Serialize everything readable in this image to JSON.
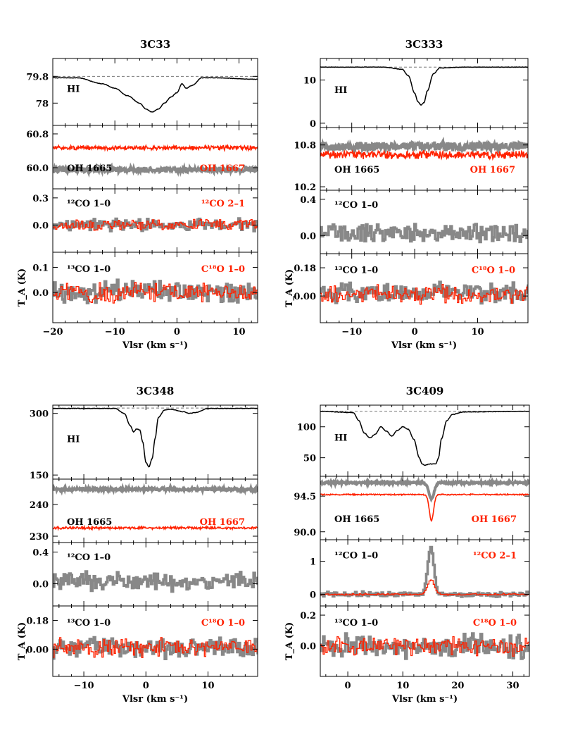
{
  "chart_data": [
    {
      "title": "3C33",
      "type": "line",
      "xlabel": "V_lsr (km s⁻¹)",
      "ylabel": "T_A (K)",
      "xlim": [
        -20,
        13
      ],
      "xticks": [
        -20,
        -10,
        0,
        10
      ],
      "panels": [
        {
          "id": "hi",
          "ylim": [
            76.5,
            81.0
          ],
          "yticks": [
            "78",
            "79.8"
          ],
          "baseline": 79.8,
          "labels": [
            {
              "text": "HI",
              "color": "#000000"
            }
          ],
          "series": [
            {
              "color": "#000000",
              "style": "smooth",
              "x": [
                -20,
                -16,
                -12,
                -10,
                -8,
                -6,
                -5,
                -4,
                -3,
                -2,
                -1,
                0,
                0.8,
                1.5,
                2.5,
                4,
                6,
                13
              ],
              "y": [
                79.7,
                79.7,
                79.3,
                79.0,
                78.5,
                78.0,
                77.6,
                77.4,
                77.6,
                78.0,
                78.4,
                78.7,
                79.3,
                79.0,
                79.2,
                79.7,
                79.7,
                79.6
              ]
            }
          ]
        },
        {
          "id": "oh",
          "ylim": [
            59.5,
            61.0
          ],
          "yticks": [
            "60.0",
            "60.8"
          ],
          "labels": [
            {
              "text": "OH 1665",
              "color": "#000000"
            },
            {
              "text": "OH 1667",
              "color": "#ff2200"
            }
          ],
          "series": [
            {
              "color": "#888888",
              "style": "noise",
              "level": 59.95,
              "noise": 0.05
            },
            {
              "color": "#ff2200",
              "style": "noise",
              "level": 60.47,
              "noise": 0.04
            }
          ]
        },
        {
          "id": "co12",
          "ylim": [
            -0.3,
            0.4
          ],
          "yticks": [
            "0.0",
            "0.3"
          ],
          "labels": [
            {
              "text": "¹²CO 1–0",
              "color": "#000000"
            },
            {
              "text": "¹²CO 2–1",
              "color": "#ff2200"
            }
          ],
          "series": [
            {
              "color": "#888888",
              "style": "step",
              "level": 0.0,
              "noise": 0.05
            },
            {
              "color": "#ff2200",
              "style": "step",
              "level": 0.0,
              "noise": 0.045
            }
          ]
        },
        {
          "id": "co13",
          "ylim": [
            -0.12,
            0.16
          ],
          "yticks": [
            "0.0",
            "0.1"
          ],
          "labels": [
            {
              "text": "¹³CO 1–0",
              "color": "#000000"
            },
            {
              "text": "C¹⁸O 1–0",
              "color": "#ff2200"
            }
          ],
          "series": [
            {
              "color": "#888888",
              "style": "step",
              "level": 0.0,
              "noise": 0.035
            },
            {
              "color": "#ff2200",
              "style": "step",
              "level": 0.0,
              "noise": 0.03
            }
          ]
        }
      ]
    },
    {
      "title": "3C333",
      "type": "line",
      "xlabel": "V_lsr (km s⁻¹)",
      "ylabel": "T_A (K)",
      "xlim": [
        -15,
        18
      ],
      "xticks": [
        -10,
        0,
        10
      ],
      "panels": [
        {
          "id": "hi",
          "ylim": [
            -1,
            15
          ],
          "yticks": [
            "0",
            "10"
          ],
          "baseline": 13.0,
          "labels": [
            {
              "text": "HI",
              "color": "#000000"
            }
          ],
          "series": [
            {
              "color": "#000000",
              "style": "smooth",
              "x": [
                -15,
                -5,
                -2,
                -1,
                0,
                0.5,
                1,
                1.5,
                2,
                3,
                4,
                8,
                18
              ],
              "y": [
                13.0,
                13.0,
                12.5,
                11.0,
                7.0,
                5.0,
                4.2,
                4.8,
                7.5,
                11.5,
                12.8,
                13.0,
                13.0
              ]
            }
          ]
        },
        {
          "id": "oh",
          "ylim": [
            10.15,
            11.05
          ],
          "yticks": [
            "10.2",
            "10.8"
          ],
          "labels": [
            {
              "text": "OH 1665",
              "color": "#000000"
            },
            {
              "text": "OH 1667",
              "color": "#ff2200"
            }
          ],
          "series": [
            {
              "color": "#888888",
              "style": "noise",
              "level": 10.78,
              "noise": 0.05
            },
            {
              "color": "#ff2200",
              "style": "noise",
              "level": 10.66,
              "noise": 0.045
            }
          ]
        },
        {
          "id": "co12",
          "ylim": [
            -0.2,
            0.5
          ],
          "yticks": [
            "0.0",
            "0.4"
          ],
          "labels": [
            {
              "text": "¹²CO 1–0",
              "color": "#000000"
            }
          ],
          "series": [
            {
              "color": "#888888",
              "style": "step",
              "level": 0.03,
              "noise": 0.08
            }
          ]
        },
        {
          "id": "co13",
          "ylim": [
            -0.17,
            0.27
          ],
          "yticks": [
            "0.00",
            "0.18"
          ],
          "labels": [
            {
              "text": "¹³CO 1–0",
              "color": "#000000"
            },
            {
              "text": "C¹⁸O 1–0",
              "color": "#ff2200"
            }
          ],
          "series": [
            {
              "color": "#888888",
              "style": "step",
              "level": 0.02,
              "noise": 0.05
            },
            {
              "color": "#ff2200",
              "style": "step",
              "level": 0.01,
              "noise": 0.045
            }
          ]
        }
      ]
    },
    {
      "title": "3C348",
      "type": "line",
      "xlabel": "V_lsr (km s⁻¹)",
      "ylabel": "T_A (K)",
      "xlim": [
        -15,
        18
      ],
      "xticks": [
        -10,
        0,
        10
      ],
      "panels": [
        {
          "id": "hi",
          "ylim": [
            140,
            320
          ],
          "yticks": [
            "150",
            "300"
          ],
          "baseline": 313,
          "labels": [
            {
              "text": "HI",
              "color": "#000000"
            }
          ],
          "series": [
            {
              "color": "#000000",
              "style": "smooth",
              "x": [
                -15,
                -5,
                -3.5,
                -2.5,
                -2,
                -1.5,
                -1,
                -0.5,
                0,
                0.5,
                1,
                1.5,
                2,
                3,
                4,
                6,
                7,
                8,
                10,
                18
              ],
              "y": [
                312,
                312,
                300,
                270,
                255,
                262,
                260,
                230,
                180,
                170,
                190,
                240,
                290,
                308,
                310,
                304,
                300,
                302,
                312,
                312
              ]
            }
          ]
        },
        {
          "id": "oh",
          "ylim": [
            228,
            248
          ],
          "yticks": [
            "230",
            "240"
          ],
          "labels": [
            {
              "text": "OH 1665",
              "color": "#000000"
            },
            {
              "text": "OH 1667",
              "color": "#ff2200"
            }
          ],
          "series": [
            {
              "color": "#888888",
              "style": "noise",
              "level": 244.8,
              "noise": 0.35
            },
            {
              "color": "#ff2200",
              "style": "noise",
              "level": 232.6,
              "noise": 0.3
            }
          ]
        },
        {
          "id": "co12",
          "ylim": [
            -0.28,
            0.52
          ],
          "yticks": [
            "0.0",
            "0.4"
          ],
          "labels": [
            {
              "text": "¹²CO 1–0",
              "color": "#000000"
            }
          ],
          "series": [
            {
              "color": "#888888",
              "style": "step",
              "level": 0.03,
              "noise": 0.09
            }
          ]
        },
        {
          "id": "co13",
          "ylim": [
            -0.17,
            0.27
          ],
          "yticks": [
            "0.00",
            "0.18"
          ],
          "labels": [
            {
              "text": "¹³CO 1–0",
              "color": "#000000"
            },
            {
              "text": "C¹⁸O 1–0",
              "color": "#ff2200"
            }
          ],
          "series": [
            {
              "color": "#888888",
              "style": "step",
              "level": 0.01,
              "noise": 0.05
            },
            {
              "color": "#ff2200",
              "style": "step",
              "level": 0.01,
              "noise": 0.045
            }
          ]
        }
      ]
    },
    {
      "title": "3C409",
      "type": "line",
      "xlabel": "V_lsr (km s⁻¹)",
      "ylabel": "T_A (K)",
      "xlim": [
        -5,
        33
      ],
      "xticks": [
        0,
        10,
        20,
        30
      ],
      "panels": [
        {
          "id": "hi",
          "ylim": [
            20,
            135
          ],
          "yticks": [
            "50",
            "100"
          ],
          "baseline": 125,
          "labels": [
            {
              "text": "HI",
              "color": "#000000"
            }
          ],
          "series": [
            {
              "color": "#000000",
              "style": "smooth",
              "x": [
                -5,
                1,
                2,
                3,
                4,
                5,
                6,
                7,
                8,
                9,
                10,
                11,
                12,
                13,
                13.5,
                14,
                15,
                16,
                16.5,
                17,
                18,
                19,
                21,
                33
              ],
              "y": [
                125,
                123,
                110,
                90,
                82,
                88,
                100,
                93,
                85,
                94,
                100,
                96,
                80,
                50,
                40,
                38,
                40,
                40,
                50,
                80,
                110,
                120,
                124,
                125
              ]
            }
          ]
        },
        {
          "id": "oh",
          "ylim": [
            89,
            97
          ],
          "yticks": [
            "90.0",
            "94.5"
          ],
          "labels": [
            {
              "text": "OH 1665",
              "color": "#000000"
            },
            {
              "text": "OH 1667",
              "color": "#ff2200"
            }
          ],
          "series": [
            {
              "color": "#888888",
              "style": "noise",
              "level": 96.2,
              "noise": 0.12,
              "dip": {
                "center": 15.2,
                "width": 0.7,
                "depth": 2.0
              }
            },
            {
              "color": "#ff2200",
              "style": "noise",
              "level": 94.7,
              "noise": 0.06,
              "dip": {
                "center": 15.2,
                "width": 0.55,
                "depth": 3.3
              }
            }
          ]
        },
        {
          "id": "co12",
          "ylim": [
            -0.35,
            1.65
          ],
          "yticks": [
            "0",
            "1"
          ],
          "labels": [
            {
              "text": "¹²CO 1–0",
              "color": "#000000"
            },
            {
              "text": "¹²CO 2–1",
              "color": "#ff2200"
            }
          ],
          "series": [
            {
              "color": "#888888",
              "style": "step",
              "level": 0.0,
              "noise": 0.06,
              "peak": {
                "center": 15.0,
                "width": 0.8,
                "height": 1.4
              }
            },
            {
              "color": "#ff2200",
              "style": "step",
              "level": 0.0,
              "noise": 0.02,
              "peak": {
                "center": 15.0,
                "width": 0.9,
                "height": 0.45
              }
            }
          ]
        },
        {
          "id": "co13",
          "ylim": [
            -0.2,
            0.26
          ],
          "yticks": [
            "0.0",
            "0.2"
          ],
          "labels": [
            {
              "text": "¹³CO 1–0",
              "color": "#000000"
            },
            {
              "text": "C¹⁸O 1–0",
              "color": "#ff2200"
            }
          ],
          "series": [
            {
              "color": "#888888",
              "style": "step",
              "level": 0.0,
              "noise": 0.06
            },
            {
              "color": "#ff2200",
              "style": "step",
              "level": 0.0,
              "noise": 0.05
            }
          ]
        }
      ]
    }
  ]
}
